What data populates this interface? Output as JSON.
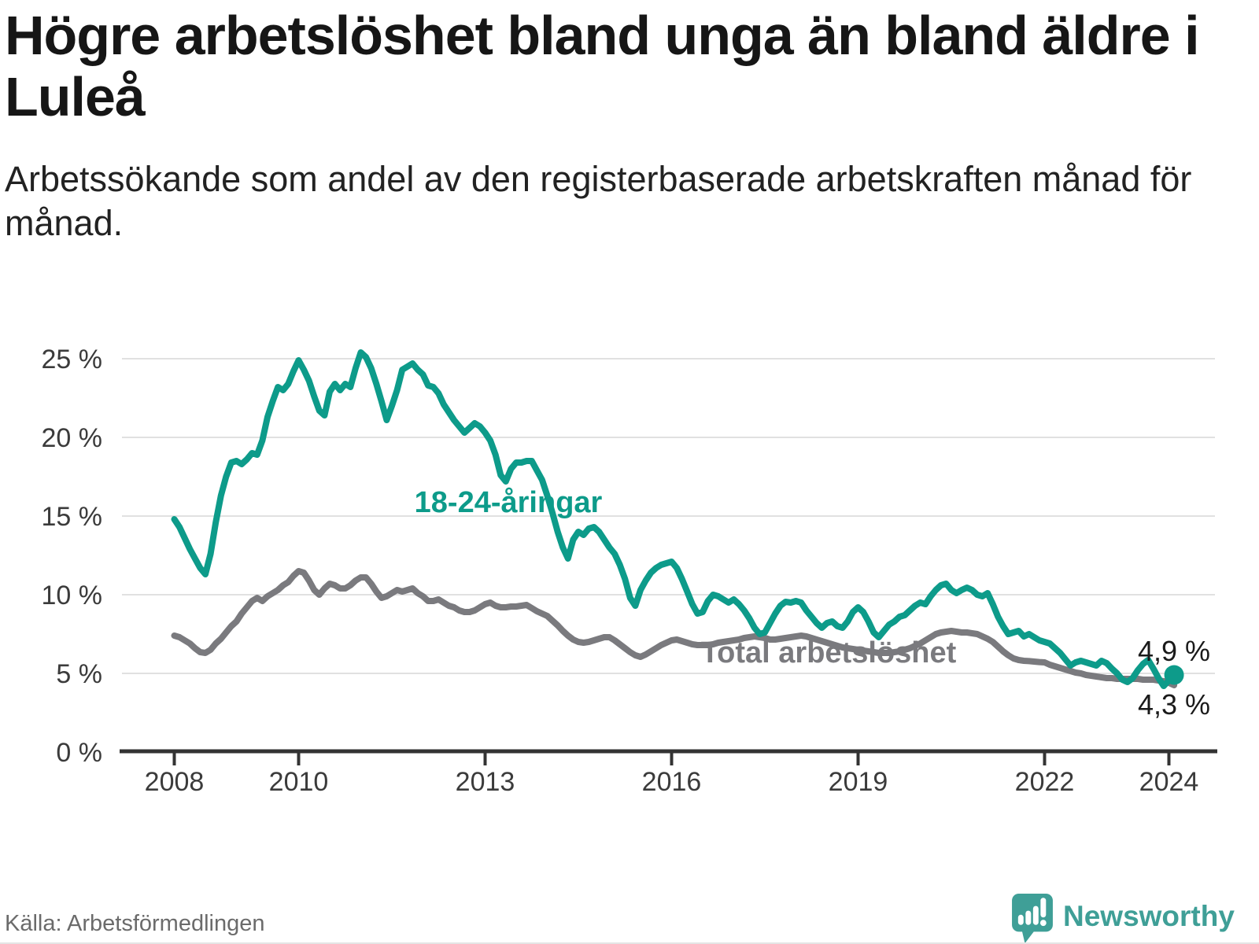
{
  "header": {
    "title": "Högre arbetslöshet bland unga än bland äldre i Luleå",
    "subtitle": "Arbetssökande som andel av den registerbaserade arbetskraften månad för månad."
  },
  "footer": {
    "source": "Källa: Arbetsförmedlingen",
    "brand": "Newsworthy"
  },
  "colors": {
    "youth_line": "#0d9b8a",
    "total_line": "#7a7a7e",
    "grid": "#e1e1e1",
    "axis": "#333333",
    "end_label_text": "#1a1a1a",
    "brand_teal": "#3f9f97"
  },
  "chart_data": {
    "type": "line",
    "title": "Högre arbetslöshet bland unga än bland äldre i Luleå",
    "subtitle": "Arbetssökande som andel av den registerbaserade arbetskraften månad för månad.",
    "x_start_year": 2008,
    "x_step_months": 1,
    "x_ticks": [
      2008,
      2010,
      2013,
      2016,
      2019,
      2022,
      2024
    ],
    "x_tick_labels": [
      "2008",
      "2010",
      "2013",
      "2016",
      "2019",
      "2022",
      "2024"
    ],
    "y_tick_values": [
      0,
      5,
      10,
      15,
      20,
      25
    ],
    "y_tick_labels": [
      "0 %",
      "5 %",
      "10 %",
      "15 %",
      "20 %",
      "25 %"
    ],
    "ylim": [
      0,
      26.5
    ],
    "grid": true,
    "legend_position": "inline-labels",
    "series": [
      {
        "name": "18-24-åringar",
        "color": "#0d9b8a",
        "end_label": "4,9 %",
        "end_dot": true,
        "values": [
          14.8,
          14.3,
          13.6,
          12.9,
          12.3,
          11.7,
          11.3,
          12.6,
          14.6,
          16.3,
          17.5,
          18.4,
          18.5,
          18.3,
          18.6,
          19.0,
          18.9,
          19.8,
          21.3,
          22.3,
          23.2,
          23.0,
          23.4,
          24.2,
          24.9,
          24.3,
          23.6,
          22.6,
          21.7,
          21.4,
          22.9,
          23.4,
          23.0,
          23.4,
          23.2,
          24.4,
          25.4,
          25.1,
          24.4,
          23.4,
          22.3,
          21.1,
          22.0,
          23.0,
          24.3,
          24.5,
          24.7,
          24.3,
          24.0,
          23.3,
          23.2,
          22.8,
          22.1,
          21.6,
          21.1,
          20.7,
          20.3,
          20.6,
          20.9,
          20.7,
          20.3,
          19.8,
          18.9,
          17.6,
          17.2,
          18.0,
          18.4,
          18.4,
          18.5,
          18.5,
          17.9,
          17.3,
          16.3,
          15.2,
          14.0,
          13.0,
          12.3,
          13.5,
          14.0,
          13.8,
          14.2,
          14.3,
          14.0,
          13.5,
          13.0,
          12.6,
          11.9,
          11.0,
          9.8,
          9.3,
          10.3,
          10.9,
          11.4,
          11.7,
          11.9,
          12.0,
          12.1,
          11.7,
          11.0,
          10.2,
          9.4,
          8.8,
          8.9,
          9.6,
          10.0,
          9.9,
          9.7,
          9.5,
          9.7,
          9.4,
          9.0,
          8.5,
          7.9,
          7.5,
          7.6,
          8.2,
          8.8,
          9.3,
          9.55,
          9.5,
          9.6,
          9.5,
          9.0,
          8.6,
          8.2,
          7.9,
          8.2,
          8.3,
          8.0,
          7.9,
          8.3,
          8.9,
          9.2,
          8.9,
          8.3,
          7.6,
          7.3,
          7.7,
          8.1,
          8.3,
          8.6,
          8.7,
          9.0,
          9.3,
          9.5,
          9.4,
          9.9,
          10.3,
          10.6,
          10.7,
          10.3,
          10.1,
          10.3,
          10.45,
          10.3,
          10.0,
          9.9,
          10.1,
          9.4,
          8.6,
          8.0,
          7.5,
          7.6,
          7.7,
          7.35,
          7.5,
          7.3,
          7.1,
          7.0,
          6.9,
          6.6,
          6.3,
          5.9,
          5.5,
          5.7,
          5.8,
          5.7,
          5.6,
          5.5,
          5.8,
          5.65,
          5.3,
          5.0,
          4.6,
          4.45,
          4.7,
          5.2,
          5.6,
          5.85,
          5.3,
          4.7,
          4.2,
          4.55,
          4.9
        ]
      },
      {
        "name": "Total arbetslöshet",
        "color": "#7a7a7e",
        "end_label": "4,3 %",
        "end_dot": false,
        "values": [
          7.4,
          7.3,
          7.1,
          6.9,
          6.6,
          6.35,
          6.3,
          6.5,
          6.9,
          7.2,
          7.6,
          8.0,
          8.3,
          8.8,
          9.2,
          9.6,
          9.8,
          9.6,
          9.9,
          10.1,
          10.3,
          10.6,
          10.8,
          11.2,
          11.5,
          11.4,
          10.9,
          10.3,
          10.0,
          10.4,
          10.7,
          10.6,
          10.4,
          10.4,
          10.6,
          10.9,
          11.1,
          11.1,
          10.7,
          10.2,
          9.8,
          9.9,
          10.1,
          10.3,
          10.2,
          10.3,
          10.4,
          10.1,
          9.9,
          9.6,
          9.6,
          9.7,
          9.5,
          9.3,
          9.2,
          9.0,
          8.9,
          8.9,
          9.0,
          9.2,
          9.4,
          9.5,
          9.3,
          9.2,
          9.2,
          9.25,
          9.25,
          9.3,
          9.35,
          9.15,
          8.95,
          8.8,
          8.65,
          8.35,
          8.05,
          7.7,
          7.4,
          7.15,
          7.0,
          6.95,
          7.0,
          7.1,
          7.2,
          7.3,
          7.3,
          7.1,
          6.85,
          6.6,
          6.35,
          6.15,
          6.05,
          6.2,
          6.4,
          6.6,
          6.8,
          6.95,
          7.1,
          7.15,
          7.05,
          6.95,
          6.85,
          6.8,
          6.8,
          6.8,
          6.85,
          6.95,
          7.0,
          7.05,
          7.1,
          7.15,
          7.25,
          7.3,
          7.35,
          7.3,
          7.25,
          7.15,
          7.15,
          7.2,
          7.25,
          7.3,
          7.35,
          7.4,
          7.35,
          7.25,
          7.15,
          7.05,
          6.95,
          6.85,
          6.75,
          6.65,
          6.6,
          6.55,
          6.5,
          6.45,
          6.4,
          6.35,
          6.3,
          6.3,
          6.3,
          6.35,
          6.4,
          6.5,
          6.6,
          6.75,
          6.9,
          7.1,
          7.3,
          7.5,
          7.6,
          7.65,
          7.7,
          7.65,
          7.6,
          7.6,
          7.55,
          7.5,
          7.35,
          7.2,
          7.0,
          6.7,
          6.4,
          6.15,
          5.95,
          5.85,
          5.8,
          5.78,
          5.75,
          5.72,
          5.7,
          5.55,
          5.45,
          5.35,
          5.25,
          5.15,
          5.05,
          5.0,
          4.9,
          4.85,
          4.8,
          4.75,
          4.7,
          4.7,
          4.65,
          4.65,
          4.65,
          4.65,
          4.65,
          4.6,
          4.6,
          4.6,
          4.55,
          4.5,
          4.4,
          4.25
        ]
      }
    ]
  }
}
